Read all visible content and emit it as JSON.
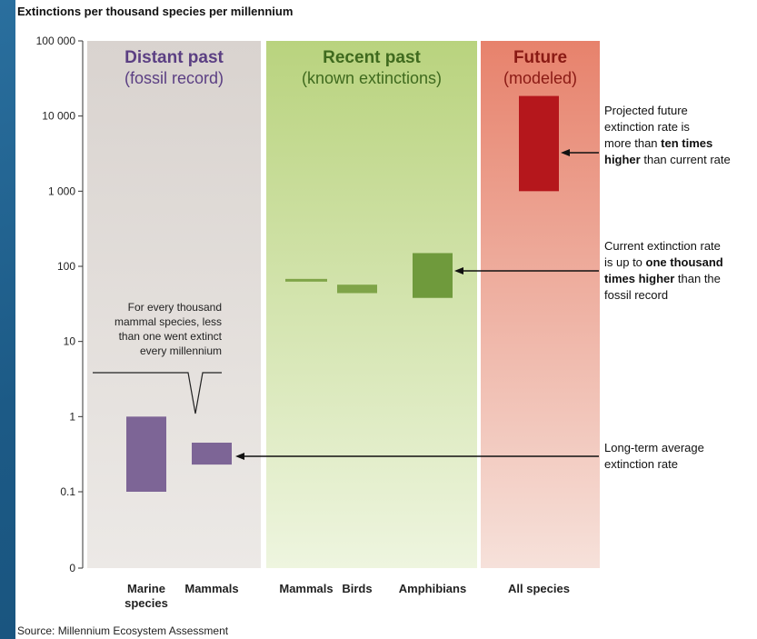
{
  "chart_data": {
    "type": "bar",
    "title": "Extinctions per thousand species per millennium",
    "source": "Source: Millennium Ecosystem Assessment",
    "y_scale": "log",
    "ylim": [
      0,
      100000
    ],
    "y_ticks": [
      {
        "value": 100000,
        "label": "100 000"
      },
      {
        "value": 10000,
        "label": "10 000"
      },
      {
        "value": 1000,
        "label": "1 000"
      },
      {
        "value": 100,
        "label": "100"
      },
      {
        "value": 10,
        "label": "10"
      },
      {
        "value": 1,
        "label": "1"
      },
      {
        "value": 0.1,
        "label": "0.1"
      },
      {
        "value": 0,
        "label": "0"
      }
    ],
    "panels": [
      {
        "title": "Distant past",
        "subtitle": "(fossil record)",
        "color_top": "#d9d3cf",
        "color_bottom": "#ece9e6",
        "title_color": "#5b3f83"
      },
      {
        "title": "Recent past",
        "subtitle": "(known extinctions)",
        "color_top": "#b9d37e",
        "color_bottom": "#eef5df",
        "title_color": "#3f6a1e"
      },
      {
        "title": "Future",
        "subtitle": "(modeled)",
        "color_top": "#e7826c",
        "color_bottom": "#f6e1da",
        "title_color": "#8a1a14"
      }
    ],
    "categories": [
      {
        "label": [
          "Marine",
          "species"
        ],
        "panel": 0,
        "low": 0.1,
        "high": 1.0,
        "color": "#7d6596"
      },
      {
        "label": [
          "Mammals"
        ],
        "panel": 0,
        "low": 0.23,
        "high": 0.45,
        "color": "#7d6596"
      },
      {
        "label": [
          "Mammals"
        ],
        "panel": 1,
        "low": 64,
        "high": 68,
        "color": "#7fa448"
      },
      {
        "label": [
          "Birds"
        ],
        "panel": 1,
        "low": 44,
        "high": 57,
        "color": "#7fa448"
      },
      {
        "label": [
          "Amphibians"
        ],
        "panel": 1,
        "low": 38,
        "high": 150,
        "color": "#6f9a3c"
      },
      {
        "label": [
          "All species"
        ],
        "panel": 2,
        "low": 1000,
        "high": 18500,
        "color": "#b5171c"
      }
    ],
    "annotations": [
      {
        "lines": [
          [
            {
              "t": "Projected future",
              "b": false
            }
          ],
          [
            {
              "t": "extinction rate is",
              "b": false
            }
          ],
          [
            {
              "t": "more than ",
              "b": false
            },
            {
              "t": "ten times",
              "b": true
            }
          ],
          [
            {
              "t": "higher",
              "b": true
            },
            {
              "t": " than current rate",
              "b": false
            }
          ]
        ]
      },
      {
        "lines": [
          [
            {
              "t": "Current extinction rate",
              "b": false
            }
          ],
          [
            {
              "t": "is up to ",
              "b": false
            },
            {
              "t": "one thousand",
              "b": true
            }
          ],
          [
            {
              "t": "times higher",
              "b": true
            },
            {
              "t": " than the",
              "b": false
            }
          ],
          [
            {
              "t": "fossil record",
              "b": false
            }
          ]
        ]
      },
      {
        "lines": [
          [
            {
              "t": "Long-term average",
              "b": false
            }
          ],
          [
            {
              "t": "extinction rate",
              "b": false
            }
          ]
        ]
      }
    ],
    "note": [
      "For every thousand",
      "mammal species, less",
      "than one went extinct",
      "every millennium"
    ]
  }
}
